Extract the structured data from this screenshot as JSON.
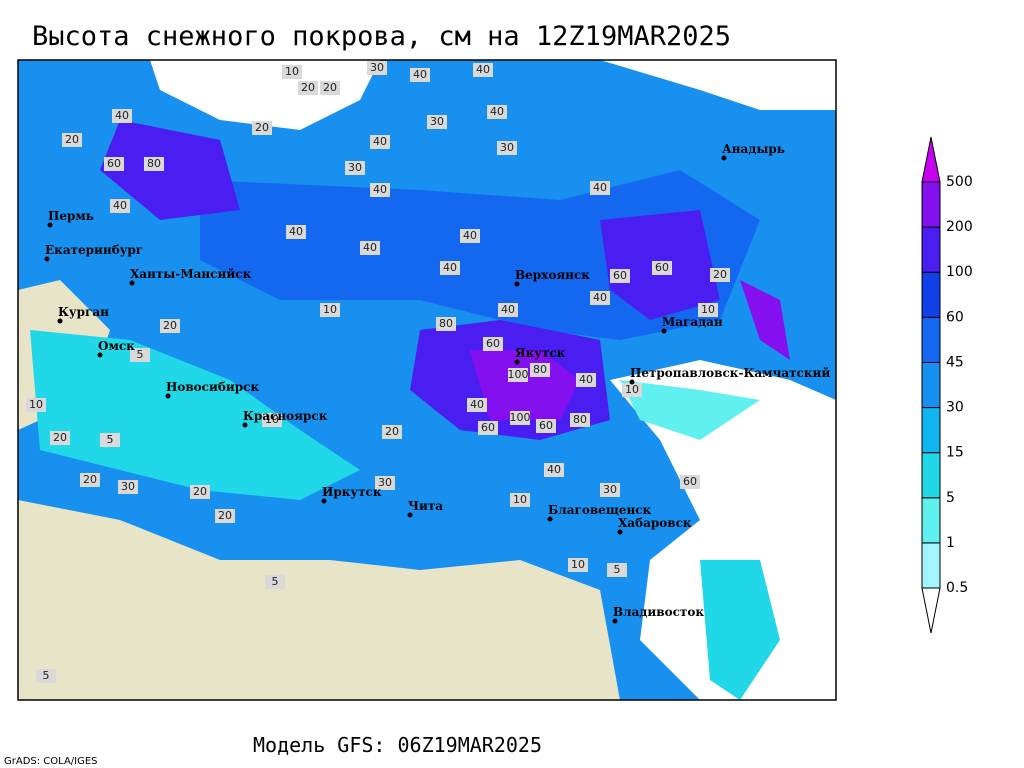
{
  "title": "Высота снежного покрова, см на 12Z19MAR2025",
  "footer": "Модель GFS: 06Z19MAR2025",
  "credit": "GrADS: COLA/IGES",
  "legend": {
    "levels": [
      0.5,
      1,
      5,
      15,
      30,
      45,
      60,
      100,
      200,
      500
    ],
    "colors": [
      "#ffffff",
      "#a0f5ff",
      "#60f0f0",
      "#20d8e8",
      "#10b4f0",
      "#1890f0",
      "#1468f0",
      "#1040e8",
      "#4a1ef0",
      "#8410f0",
      "#c800f0"
    ]
  },
  "cities": [
    "Пермь",
    "Екатеринбург",
    "Ханты-Мансийск",
    "Курган",
    "Омск",
    "Новосибирск",
    "Красноярск",
    "Иркутск",
    "Чита",
    "Благовещенск",
    "Хабаровск",
    "Владивосток",
    "Якутск",
    "Верхоянск",
    "Магадан",
    "Петропавловск-Камчатский",
    "Анадырь"
  ],
  "contour_labels": [
    10,
    30,
    40,
    40,
    20,
    20,
    30,
    40,
    20,
    40,
    30,
    40,
    20,
    60,
    80,
    40,
    30,
    40,
    40,
    40,
    40,
    40,
    60,
    60,
    40,
    40,
    80,
    60,
    100,
    80,
    100,
    60,
    80,
    40,
    60,
    20,
    10,
    20,
    40,
    10,
    10,
    20,
    20,
    10,
    5,
    5,
    5,
    10,
    20,
    30,
    20,
    40,
    30,
    10,
    10,
    5,
    30,
    5,
    40,
    60,
    5,
    20
  ]
}
